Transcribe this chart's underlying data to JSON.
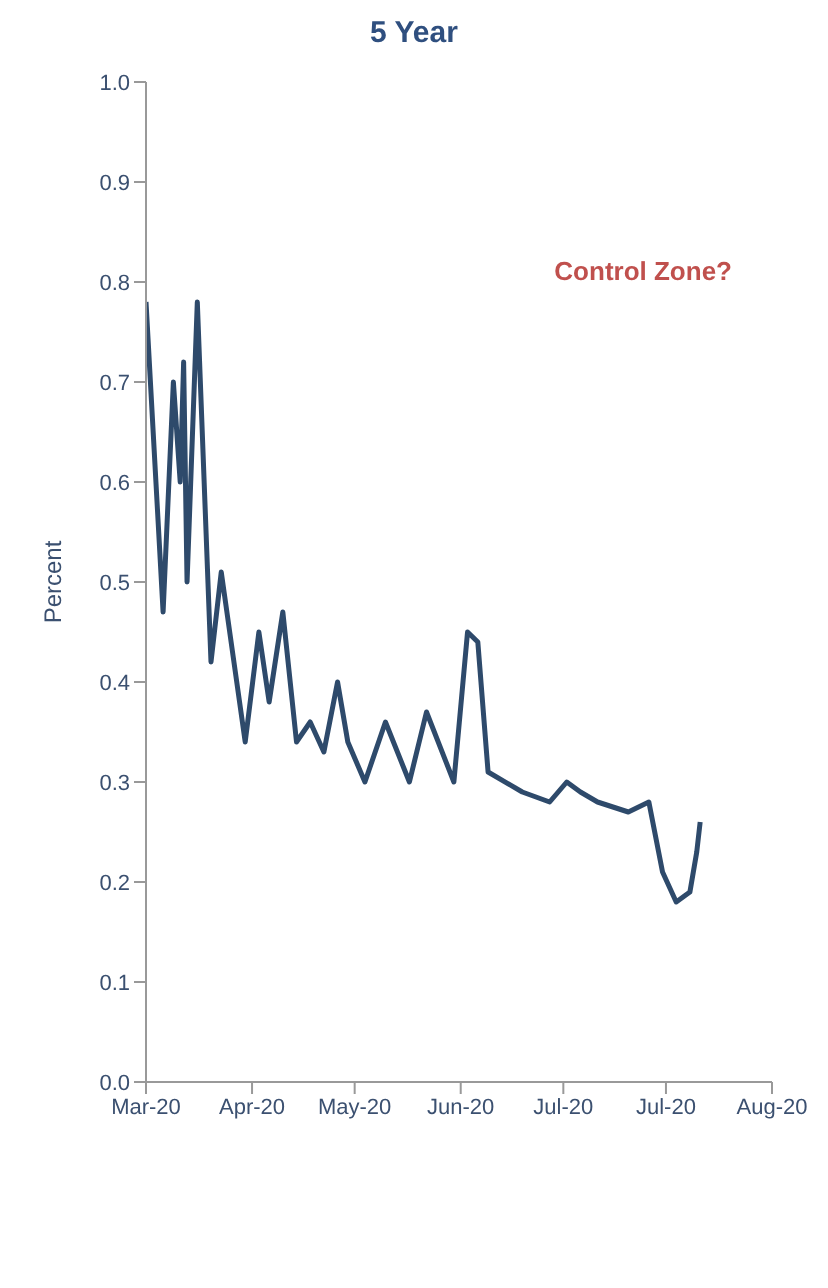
{
  "chart_data": {
    "type": "line",
    "title": "5 Year",
    "ylabel": "Percent",
    "annotations": [
      "Control Zone?"
    ],
    "x": [
      "2020-03-01",
      "2020-03-06",
      "2020-03-09",
      "2020-03-11",
      "2020-03-12",
      "2020-03-13",
      "2020-03-16",
      "2020-03-20",
      "2020-03-23",
      "2020-03-30",
      "2020-04-03",
      "2020-04-06",
      "2020-04-10",
      "2020-04-14",
      "2020-04-18",
      "2020-04-22",
      "2020-04-26",
      "2020-04-29",
      "2020-05-04",
      "2020-05-10",
      "2020-05-17",
      "2020-05-22",
      "2020-05-30",
      "2020-06-03",
      "2020-06-06",
      "2020-06-09",
      "2020-06-19",
      "2020-06-27",
      "2020-07-02",
      "2020-07-06",
      "2020-07-11",
      "2020-07-20",
      "2020-07-26",
      "2020-07-30",
      "2020-08-03",
      "2020-08-07",
      "2020-08-09",
      "2020-08-10"
    ],
    "series": [
      {
        "color": "#2e4a6b",
        "values": [
          0.78,
          0.47,
          0.7,
          0.6,
          0.72,
          0.5,
          0.78,
          0.42,
          0.51,
          0.34,
          0.45,
          0.38,
          0.47,
          0.34,
          0.36,
          0.33,
          0.4,
          0.34,
          0.3,
          0.36,
          0.3,
          0.37,
          0.3,
          0.45,
          0.44,
          0.31,
          0.29,
          0.28,
          0.3,
          0.29,
          0.28,
          0.27,
          0.28,
          0.21,
          0.18,
          0.19,
          0.23,
          0.26
        ]
      }
    ],
    "xlim": [
      "2020-03-01",
      "2020-08-31"
    ],
    "xticks": [
      {
        "value": "2020-03-01",
        "label": "Mar-20"
      },
      {
        "value": "2020-04-01",
        "label": "Apr-20"
      },
      {
        "value": "2020-05-01",
        "label": "May-20"
      },
      {
        "value": "2020-06-01",
        "label": "Jun-20"
      },
      {
        "value": "2020-07-01",
        "label": "Jul-20"
      },
      {
        "value": "2020-07-31",
        "label": "Jul-20"
      },
      {
        "value": "2020-08-31",
        "label": "Aug-20"
      }
    ],
    "ylim": [
      0,
      1
    ],
    "yticks": [
      {
        "value": 0,
        "label": "0.0"
      },
      {
        "value": 0.1,
        "label": "0.1"
      },
      {
        "value": 0.2,
        "label": "0.2"
      },
      {
        "value": 0.3,
        "label": "0.3"
      },
      {
        "value": 0.4,
        "label": "0.4"
      },
      {
        "value": 0.5,
        "label": "0.5"
      },
      {
        "value": 0.6,
        "label": "0.6"
      },
      {
        "value": 0.7,
        "label": "0.7"
      },
      {
        "value": 0.8,
        "label": "0.8"
      },
      {
        "value": 0.9,
        "label": "0.9"
      },
      {
        "value": 1,
        "label": "1.0"
      }
    ],
    "grid": false,
    "legend": false
  }
}
